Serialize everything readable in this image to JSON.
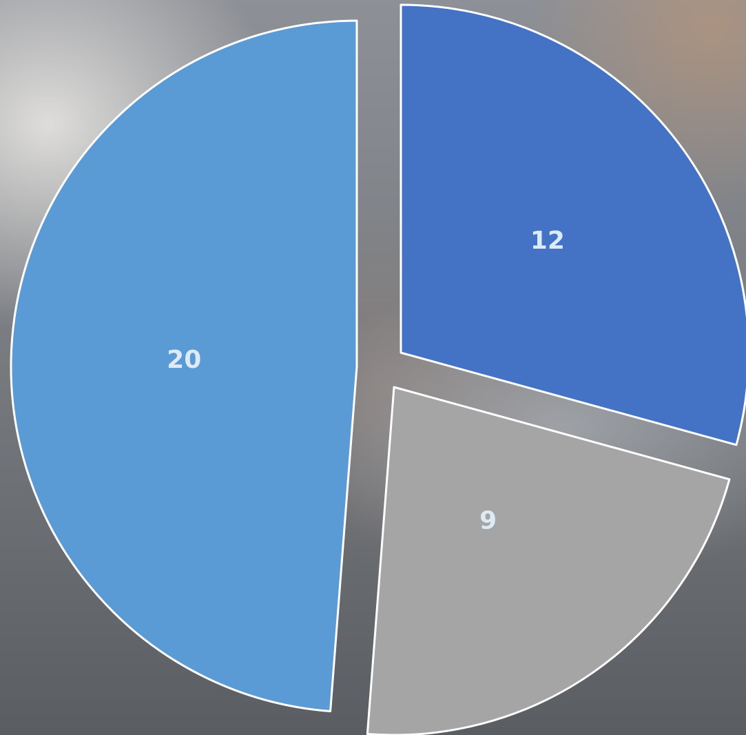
{
  "chart_data": {
    "type": "pie",
    "title": "",
    "categories": [
      "",
      "",
      ""
    ],
    "values": [
      12,
      9,
      20
    ],
    "data_labels": [
      "12",
      "9",
      "20"
    ],
    "colors": [
      "#4472C4",
      "#A5A5A5",
      "#5B9BD5"
    ],
    "label_color": "#DDEBF7",
    "start_angle_deg": 0,
    "direction": "clockwise",
    "exploded": true,
    "legend": "none"
  }
}
